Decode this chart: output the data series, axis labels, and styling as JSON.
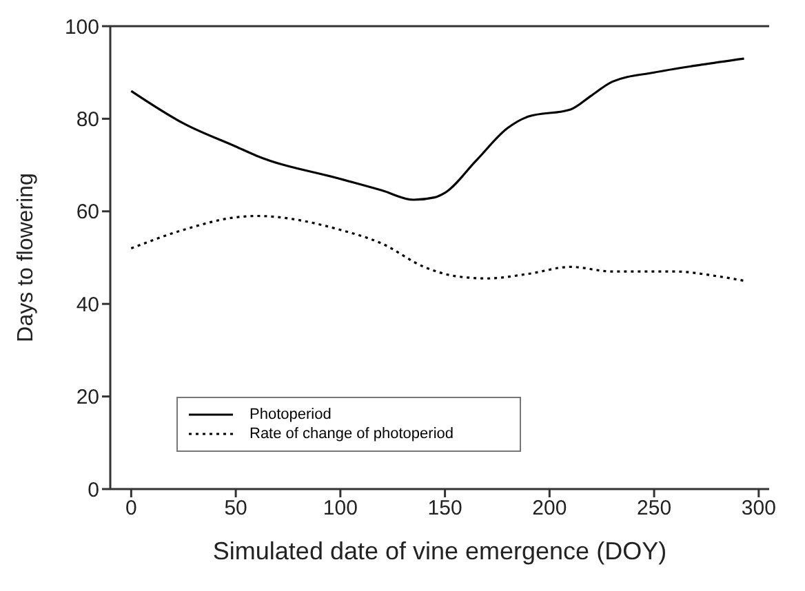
{
  "chart_data": {
    "type": "line",
    "xlabel": "Simulated date of vine emergence (DOY)",
    "ylabel": "Days to flowering",
    "xlim": [
      -10,
      305
    ],
    "xticks": [
      0,
      50,
      100,
      150,
      200,
      250,
      300
    ],
    "ylim": [
      0,
      100
    ],
    "yticks": [
      0,
      20,
      40,
      60,
      80,
      100
    ],
    "legend": "bottom left",
    "marker": "none",
    "series": [
      {
        "name": "Photoperiod",
        "color": "#000000",
        "line_style": "solid",
        "x": [
          0,
          25,
          50,
          60,
          100,
          120,
          135,
          145,
          150,
          165,
          180,
          190,
          210,
          220,
          230,
          250,
          270,
          293
        ],
        "values": [
          86,
          79,
          74,
          72,
          67,
          64.5,
          62.5,
          63,
          64,
          71,
          78,
          80.5,
          82,
          85,
          88,
          90,
          91.5,
          93
        ]
      },
      {
        "name": "Rate of change of photoperiod",
        "color": "#000000",
        "line_style": "dotted",
        "x": [
          0,
          25,
          50,
          60,
          100,
          120,
          140,
          155,
          170,
          190,
          210,
          230,
          260,
          280,
          293
        ],
        "values": [
          52,
          56,
          58.7,
          59,
          56,
          53,
          48,
          46,
          45.5,
          46.5,
          48,
          47,
          47,
          46,
          45
        ]
      }
    ]
  }
}
